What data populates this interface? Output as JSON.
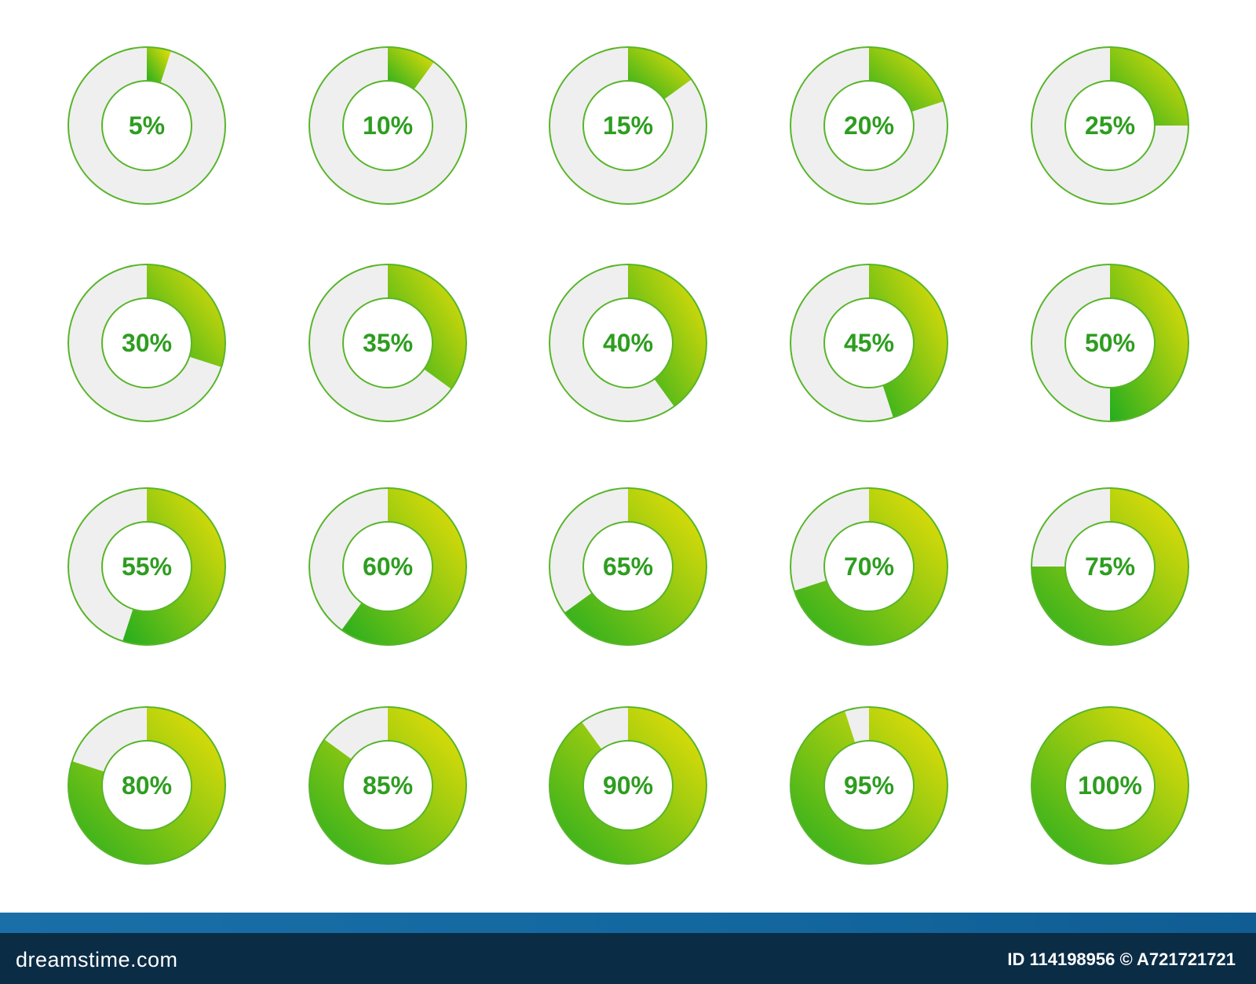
{
  "colors": {
    "fill_start": "#24ad1f",
    "fill_end": "#f2e106",
    "track": "#efefef",
    "outline": "#58b52a",
    "label": "#2e9d20",
    "footer_bg": "#0b2c45",
    "footer_band": "#176aa2"
  },
  "grid": {
    "columns": 5,
    "rows": 4
  },
  "charts": [
    {
      "value": 5,
      "label": "5%"
    },
    {
      "value": 10,
      "label": "10%"
    },
    {
      "value": 15,
      "label": "15%"
    },
    {
      "value": 20,
      "label": "20%"
    },
    {
      "value": 25,
      "label": "25%"
    },
    {
      "value": 30,
      "label": "30%"
    },
    {
      "value": 35,
      "label": "35%"
    },
    {
      "value": 40,
      "label": "40%"
    },
    {
      "value": 45,
      "label": "45%"
    },
    {
      "value": 50,
      "label": "50%"
    },
    {
      "value": 55,
      "label": "55%"
    },
    {
      "value": 60,
      "label": "60%"
    },
    {
      "value": 65,
      "label": "65%"
    },
    {
      "value": 70,
      "label": "70%"
    },
    {
      "value": 75,
      "label": "75%"
    },
    {
      "value": 80,
      "label": "80%"
    },
    {
      "value": 85,
      "label": "85%"
    },
    {
      "value": 90,
      "label": "90%"
    },
    {
      "value": 95,
      "label": "95%"
    },
    {
      "value": 100,
      "label": "100%"
    }
  ],
  "footer": {
    "brand": "dreamstime.com",
    "image_id": "ID 114198956 © A721721721"
  }
}
